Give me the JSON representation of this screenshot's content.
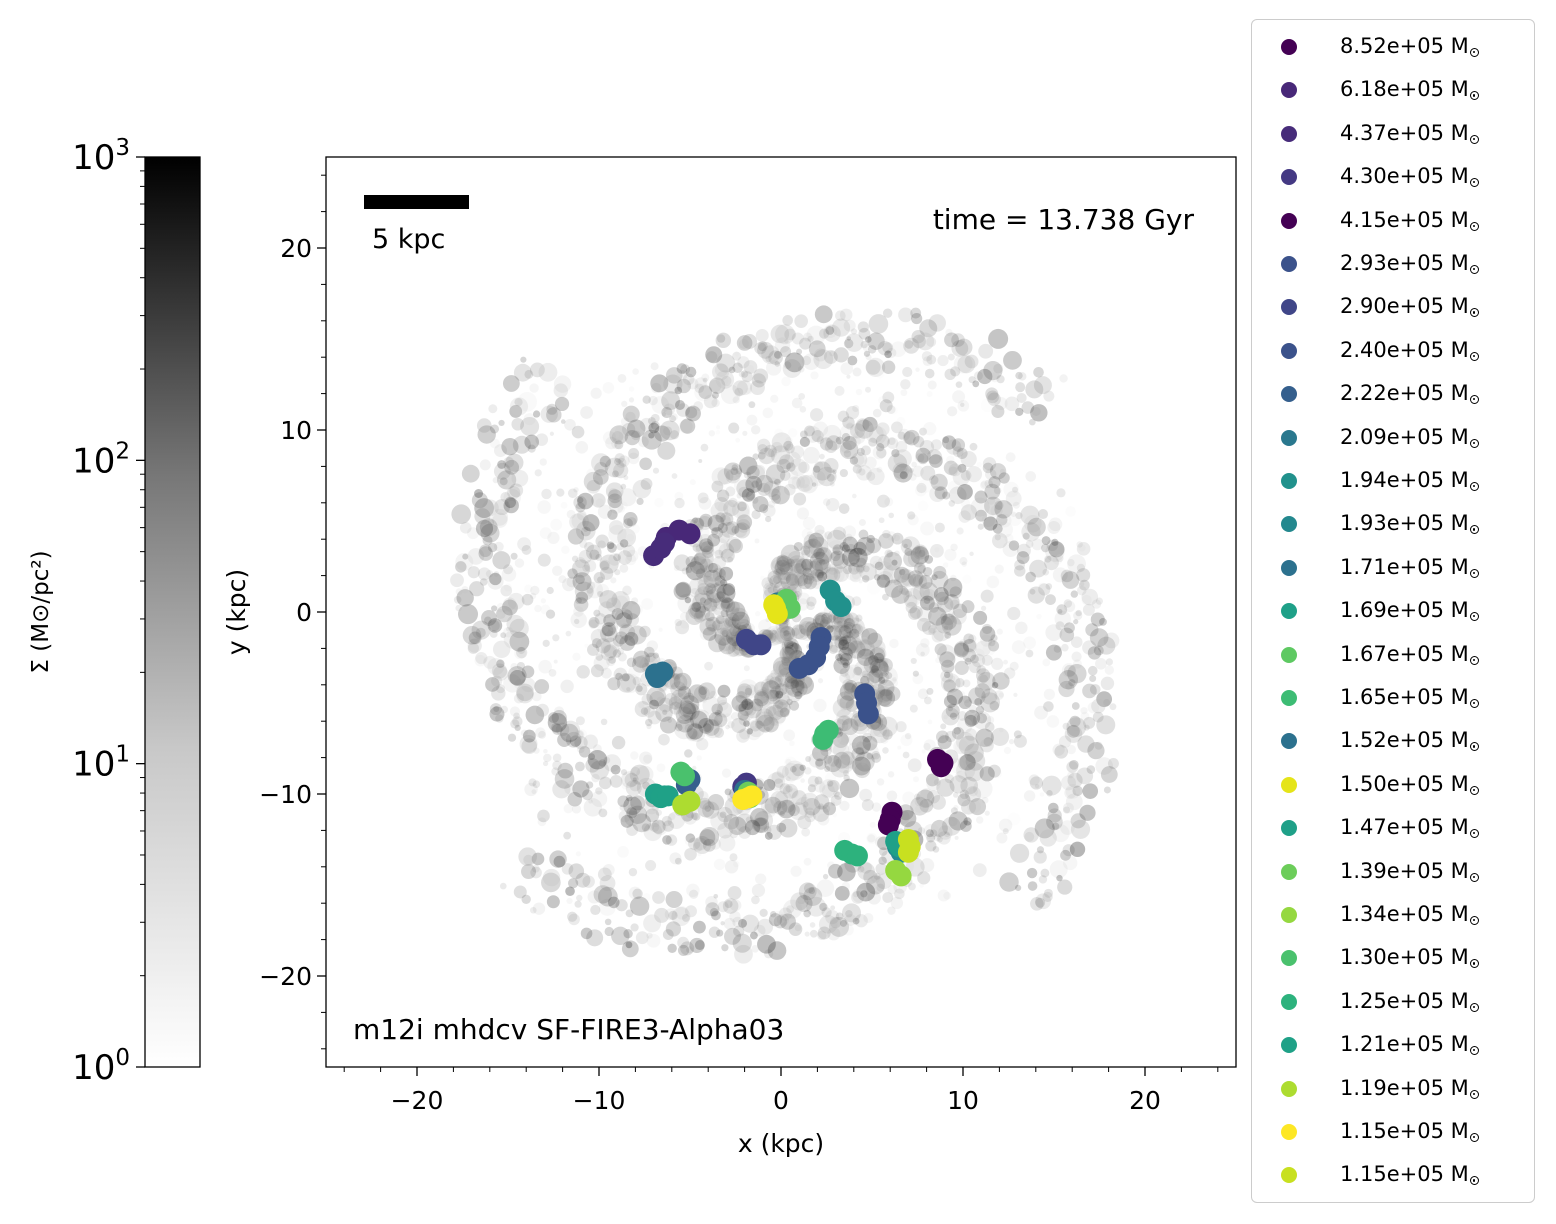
{
  "chart_data": {
    "type": "scatter",
    "title": "",
    "xlabel": "x (kpc)",
    "ylabel": "y (kpc)",
    "xlim": [
      -25,
      25
    ],
    "ylim": [
      -25,
      25
    ],
    "x_ticks": [
      -20,
      -10,
      0,
      10,
      20
    ],
    "y_ticks": [
      -20,
      -10,
      0,
      10,
      20
    ],
    "annotations": {
      "time": "time = 13.738 Gyr",
      "run_name": "m12i mhdcv SF-FIRE3-Alpha03",
      "scale_bar": "5 kpc"
    },
    "colorbar": {
      "label": "Σ (M⊙/pc²)",
      "scale": "log",
      "range": [
        1,
        1000
      ],
      "ticks": [
        "10^0",
        "10^1",
        "10^2",
        "10^3"
      ],
      "colormap": "Greys"
    },
    "legend_position": "outside-right",
    "series": [
      {
        "name": "8.52e+05",
        "color": "#440154",
        "points": [
          [
            8.6,
            -8.1
          ],
          [
            8.9,
            -8.3
          ],
          [
            8.8,
            -8.5
          ]
        ]
      },
      {
        "name": "6.18e+05",
        "color": "#482878",
        "points": [
          [
            -6.3,
            4.1
          ],
          [
            -5.6,
            4.5
          ],
          [
            -5.0,
            4.3
          ]
        ]
      },
      {
        "name": "4.37e+05",
        "color": "#472c7a",
        "points": [
          [
            -7.0,
            3.1
          ],
          [
            -6.6,
            3.5
          ],
          [
            -6.4,
            3.8
          ]
        ]
      },
      {
        "name": "4.30e+05",
        "color": "#443983",
        "points": [
          [
            -1.9,
            -9.4
          ],
          [
            -2.1,
            -9.6
          ]
        ]
      },
      {
        "name": "4.15e+05",
        "color": "#440154",
        "points": [
          [
            6.1,
            -11.0
          ],
          [
            6.0,
            -11.4
          ],
          [
            5.9,
            -11.7
          ]
        ]
      },
      {
        "name": "2.93e+05",
        "color": "#3b528b",
        "points": [
          [
            2.2,
            -1.4
          ],
          [
            2.1,
            -1.9
          ],
          [
            1.9,
            -2.5
          ],
          [
            1.5,
            -2.9
          ],
          [
            1.0,
            -3.1
          ]
        ]
      },
      {
        "name": "2.90e+05",
        "color": "#404688",
        "points": [
          [
            -1.9,
            -1.5
          ],
          [
            -1.5,
            -1.8
          ],
          [
            -1.1,
            -1.8
          ]
        ]
      },
      {
        "name": "2.40e+05",
        "color": "#3b528b",
        "points": [
          [
            4.6,
            -4.5
          ],
          [
            4.7,
            -5.0
          ],
          [
            4.8,
            -5.6
          ]
        ]
      },
      {
        "name": "2.22e+05",
        "color": "#355f8d",
        "points": [
          [
            -5.0,
            -9.2
          ],
          [
            -5.2,
            -9.5
          ]
        ]
      },
      {
        "name": "2.09e+05",
        "color": "#2a788e",
        "points": [
          [
            -0.2,
            0.5
          ],
          [
            0.1,
            0.2
          ]
        ]
      },
      {
        "name": "1.94e+05",
        "color": "#21918c",
        "points": [
          [
            2.7,
            1.2
          ],
          [
            3.0,
            0.6
          ],
          [
            3.3,
            0.3
          ]
        ]
      },
      {
        "name": "1.93e+05",
        "color": "#23888e",
        "points": [
          [
            6.4,
            -12.9
          ],
          [
            6.6,
            -13.2
          ]
        ]
      },
      {
        "name": "1.71e+05",
        "color": "#2c718e",
        "points": [
          [
            -6.9,
            -3.4
          ],
          [
            -6.5,
            -3.3
          ],
          [
            -6.8,
            -3.6
          ]
        ]
      },
      {
        "name": "1.69e+05",
        "color": "#1fa088",
        "points": [
          [
            -6.9,
            -10.0
          ],
          [
            -6.4,
            -10.1
          ]
        ]
      },
      {
        "name": "1.67e+05",
        "color": "#5ec962",
        "points": [
          [
            0.3,
            0.7
          ],
          [
            0.5,
            0.2
          ]
        ]
      },
      {
        "name": "1.65e+05",
        "color": "#3dbc74",
        "points": [
          [
            2.4,
            -6.7
          ],
          [
            2.6,
            -6.5
          ],
          [
            2.3,
            -7.0
          ]
        ]
      },
      {
        "name": "1.52e+05",
        "color": "#2c718e",
        "points": [
          [
            -2.0,
            -9.8
          ]
        ]
      },
      {
        "name": "1.50e+05",
        "color": "#e5e419",
        "points": [
          [
            -0.4,
            0.4
          ],
          [
            -0.2,
            -0.1
          ],
          [
            -0.3,
            0.2
          ]
        ]
      },
      {
        "name": "1.47e+05",
        "color": "#1fa088",
        "points": [
          [
            6.3,
            -12.6
          ],
          [
            6.5,
            -12.9
          ]
        ]
      },
      {
        "name": "1.39e+05",
        "color": "#6ccd5a",
        "points": [
          [
            -1.8,
            -9.9
          ],
          [
            -1.7,
            -10.2
          ]
        ]
      },
      {
        "name": "1.34e+05",
        "color": "#95d840",
        "points": [
          [
            6.3,
            -14.2
          ],
          [
            6.6,
            -14.5
          ]
        ]
      },
      {
        "name": "1.30e+05",
        "color": "#4ac16d",
        "points": [
          [
            -5.3,
            -9.0
          ],
          [
            -5.5,
            -8.8
          ]
        ]
      },
      {
        "name": "1.25e+05",
        "color": "#2db27d",
        "points": [
          [
            3.5,
            -13.1
          ],
          [
            3.9,
            -13.3
          ],
          [
            4.2,
            -13.4
          ]
        ]
      },
      {
        "name": "1.21e+05",
        "color": "#1fa187",
        "points": [
          [
            -6.6,
            -10.2
          ],
          [
            -6.2,
            -10.1
          ]
        ]
      },
      {
        "name": "1.19e+05",
        "color": "#addc30",
        "points": [
          [
            -5.4,
            -10.6
          ],
          [
            -5.0,
            -10.4
          ]
        ]
      },
      {
        "name": "1.15e+05",
        "color": "#fde725",
        "points": [
          [
            -2.1,
            -10.3
          ],
          [
            -1.8,
            -10.2
          ],
          [
            -1.6,
            -10.1
          ]
        ]
      },
      {
        "name": "1.15e+05",
        "color": "#c8e020",
        "points": [
          [
            7.0,
            -12.5
          ],
          [
            7.1,
            -12.9
          ],
          [
            7.0,
            -13.2
          ]
        ]
      }
    ]
  },
  "legend": {
    "unit_prefix": "M",
    "items": [
      "8.52e+05",
      "6.18e+05",
      "4.37e+05",
      "4.30e+05",
      "4.15e+05",
      "2.93e+05",
      "2.90e+05",
      "2.40e+05",
      "2.22e+05",
      "2.09e+05",
      "1.94e+05",
      "1.93e+05",
      "1.71e+05",
      "1.69e+05",
      "1.67e+05",
      "1.65e+05",
      "1.52e+05",
      "1.50e+05",
      "1.47e+05",
      "1.39e+05",
      "1.34e+05",
      "1.30e+05",
      "1.25e+05",
      "1.21e+05",
      "1.19e+05",
      "1.15e+05",
      "1.15e+05"
    ]
  }
}
